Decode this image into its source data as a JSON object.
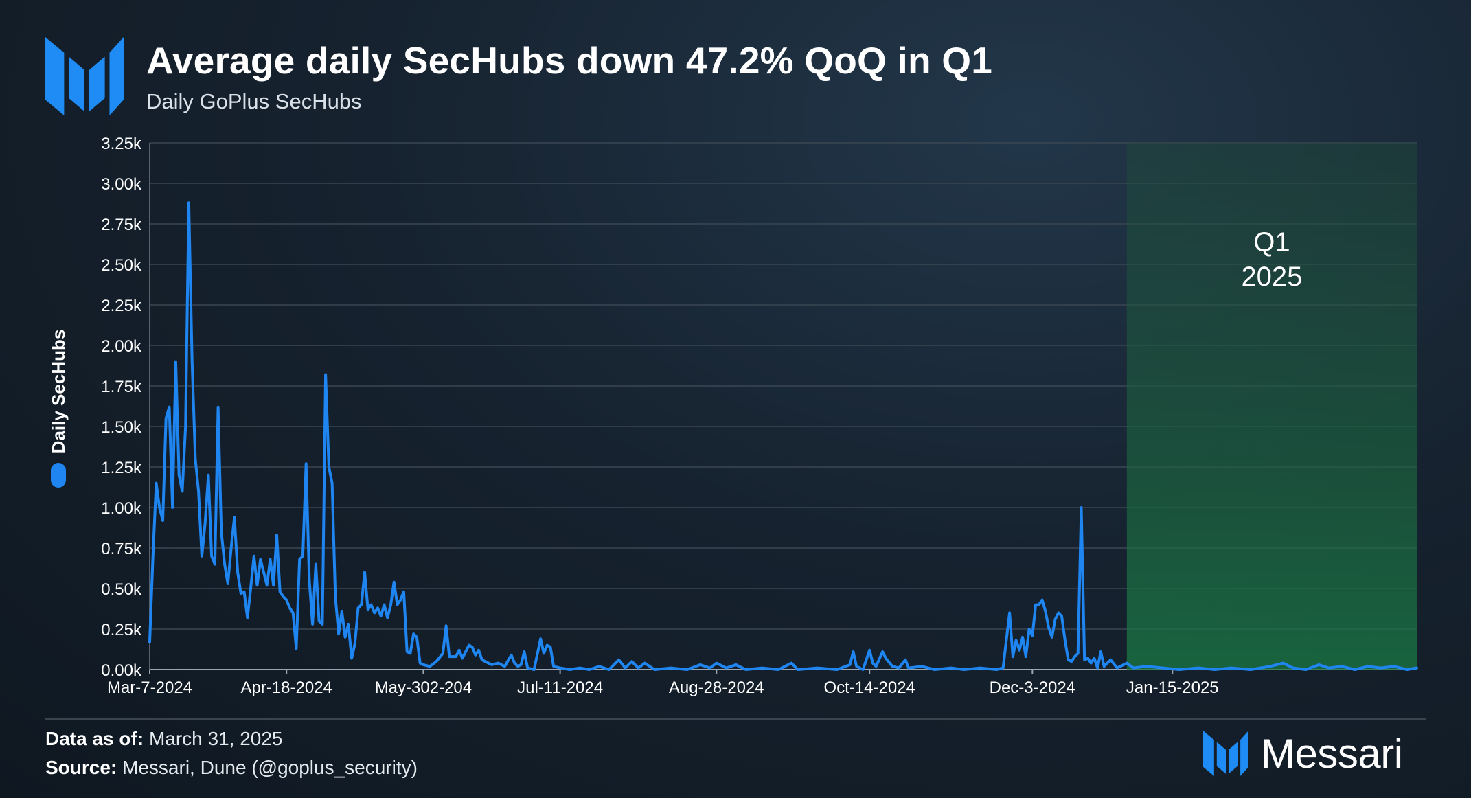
{
  "header": {
    "title": "Average daily SecHubs down 47.2% QoQ in Q1",
    "subtitle": "Daily GoPlus SecHubs"
  },
  "footer": {
    "date_label": "Data as of:",
    "date_value": "March 31, 2025",
    "source_label": "Source:",
    "source_value": "Messari, Dune (@goplus_security)"
  },
  "brand": {
    "name": "Messari",
    "logo_icon": "messari-m-icon"
  },
  "colors": {
    "accent": "#1f85f0",
    "highlight": "#1a7a45",
    "text": "#ffffff"
  },
  "chart_data": {
    "type": "line",
    "ylabel": "Daily SecHubs",
    "ylim": [
      0,
      3250
    ],
    "y_ticks": [
      0,
      250,
      500,
      750,
      1000,
      1250,
      1500,
      1750,
      2000,
      2250,
      2500,
      2750,
      3000,
      3250
    ],
    "y_tick_labels": [
      "0.00k",
      "0.25k",
      "0.50k",
      "0.75k",
      "1.00k",
      "1.25k",
      "1.50k",
      "1.75k",
      "2.00k",
      "2.25k",
      "2.50k",
      "2.75k",
      "3.00k",
      "3.25k"
    ],
    "x_start": "2024-03-07",
    "x_end": "2025-03-31",
    "x_ticks": [
      {
        "date": "2024-03-07",
        "label": "Mar-7-2024"
      },
      {
        "date": "2024-04-18",
        "label": "Apr-18-2024"
      },
      {
        "date": "2024-05-30",
        "label": "May-302-204"
      },
      {
        "date": "2024-07-11",
        "label": "Jul-11-2024"
      },
      {
        "date": "2024-08-28",
        "label": "Aug-28-2024"
      },
      {
        "date": "2024-10-14",
        "label": "Oct-14-2024"
      },
      {
        "date": "2024-12-03",
        "label": "Dec-3-2024"
      },
      {
        "date": "2025-01-15",
        "label": "Jan-15-2025"
      }
    ],
    "grid": true,
    "legend": "left",
    "highlight": {
      "start": "2025-01-01",
      "end": "2025-03-31",
      "label_line1": "Q1",
      "label_line2": "2025"
    },
    "series": [
      {
        "name": "Daily SecHubs",
        "color": "#1f85f0",
        "points": [
          [
            "2024-03-07",
            170
          ],
          [
            "2024-03-08",
            700
          ],
          [
            "2024-03-09",
            1150
          ],
          [
            "2024-03-10",
            1000
          ],
          [
            "2024-03-11",
            920
          ],
          [
            "2024-03-12",
            1550
          ],
          [
            "2024-03-13",
            1620
          ],
          [
            "2024-03-14",
            1000
          ],
          [
            "2024-03-15",
            1900
          ],
          [
            "2024-03-16",
            1200
          ],
          [
            "2024-03-17",
            1100
          ],
          [
            "2024-03-18",
            1500
          ],
          [
            "2024-03-19",
            2880
          ],
          [
            "2024-03-20",
            1900
          ],
          [
            "2024-03-21",
            1300
          ],
          [
            "2024-03-22",
            1100
          ],
          [
            "2024-03-23",
            700
          ],
          [
            "2024-03-24",
            900
          ],
          [
            "2024-03-25",
            1200
          ],
          [
            "2024-03-26",
            700
          ],
          [
            "2024-03-27",
            650
          ],
          [
            "2024-03-28",
            1620
          ],
          [
            "2024-03-29",
            850
          ],
          [
            "2024-03-30",
            650
          ],
          [
            "2024-03-31",
            530
          ],
          [
            "2024-04-01",
            750
          ],
          [
            "2024-04-02",
            940
          ],
          [
            "2024-04-03",
            600
          ],
          [
            "2024-04-04",
            470
          ],
          [
            "2024-04-05",
            480
          ],
          [
            "2024-04-06",
            320
          ],
          [
            "2024-04-07",
            500
          ],
          [
            "2024-04-08",
            700
          ],
          [
            "2024-04-09",
            520
          ],
          [
            "2024-04-10",
            680
          ],
          [
            "2024-04-11",
            600
          ],
          [
            "2024-04-12",
            520
          ],
          [
            "2024-04-13",
            680
          ],
          [
            "2024-04-14",
            520
          ],
          [
            "2024-04-15",
            830
          ],
          [
            "2024-04-16",
            480
          ],
          [
            "2024-04-17",
            450
          ],
          [
            "2024-04-18",
            430
          ],
          [
            "2024-04-19",
            380
          ],
          [
            "2024-04-20",
            350
          ],
          [
            "2024-04-21",
            130
          ],
          [
            "2024-04-22",
            680
          ],
          [
            "2024-04-23",
            700
          ],
          [
            "2024-04-24",
            1270
          ],
          [
            "2024-04-25",
            550
          ],
          [
            "2024-04-26",
            280
          ],
          [
            "2024-04-27",
            650
          ],
          [
            "2024-04-28",
            300
          ],
          [
            "2024-04-29",
            280
          ],
          [
            "2024-04-30",
            1820
          ],
          [
            "2024-05-01",
            1250
          ],
          [
            "2024-05-02",
            1150
          ],
          [
            "2024-05-03",
            450
          ],
          [
            "2024-05-04",
            220
          ],
          [
            "2024-05-05",
            360
          ],
          [
            "2024-05-06",
            200
          ],
          [
            "2024-05-07",
            280
          ],
          [
            "2024-05-08",
            70
          ],
          [
            "2024-05-09",
            160
          ],
          [
            "2024-05-10",
            380
          ],
          [
            "2024-05-11",
            400
          ],
          [
            "2024-05-12",
            600
          ],
          [
            "2024-05-13",
            370
          ],
          [
            "2024-05-14",
            400
          ],
          [
            "2024-05-15",
            350
          ],
          [
            "2024-05-16",
            380
          ],
          [
            "2024-05-17",
            330
          ],
          [
            "2024-05-18",
            400
          ],
          [
            "2024-05-19",
            320
          ],
          [
            "2024-05-20",
            400
          ],
          [
            "2024-05-21",
            540
          ],
          [
            "2024-05-22",
            400
          ],
          [
            "2024-05-23",
            430
          ],
          [
            "2024-05-24",
            480
          ],
          [
            "2024-05-25",
            110
          ],
          [
            "2024-05-26",
            100
          ],
          [
            "2024-05-27",
            220
          ],
          [
            "2024-05-28",
            200
          ],
          [
            "2024-05-29",
            40
          ],
          [
            "2024-05-30",
            30
          ],
          [
            "2024-06-01",
            20
          ],
          [
            "2024-06-03",
            50
          ],
          [
            "2024-06-05",
            100
          ],
          [
            "2024-06-06",
            270
          ],
          [
            "2024-06-07",
            80
          ],
          [
            "2024-06-09",
            80
          ],
          [
            "2024-06-10",
            120
          ],
          [
            "2024-06-11",
            70
          ],
          [
            "2024-06-13",
            150
          ],
          [
            "2024-06-14",
            140
          ],
          [
            "2024-06-15",
            90
          ],
          [
            "2024-06-16",
            120
          ],
          [
            "2024-06-17",
            60
          ],
          [
            "2024-06-18",
            50
          ],
          [
            "2024-06-20",
            30
          ],
          [
            "2024-06-22",
            40
          ],
          [
            "2024-06-24",
            20
          ],
          [
            "2024-06-26",
            90
          ],
          [
            "2024-06-27",
            40
          ],
          [
            "2024-06-28",
            20
          ],
          [
            "2024-06-29",
            30
          ],
          [
            "2024-06-30",
            110
          ],
          [
            "2024-07-01",
            10
          ],
          [
            "2024-07-03",
            0
          ],
          [
            "2024-07-05",
            190
          ],
          [
            "2024-07-06",
            100
          ],
          [
            "2024-07-07",
            150
          ],
          [
            "2024-07-08",
            140
          ],
          [
            "2024-07-09",
            20
          ],
          [
            "2024-07-11",
            10
          ],
          [
            "2024-07-14",
            0
          ],
          [
            "2024-07-17",
            10
          ],
          [
            "2024-07-20",
            0
          ],
          [
            "2024-07-23",
            20
          ],
          [
            "2024-07-26",
            0
          ],
          [
            "2024-07-29",
            60
          ],
          [
            "2024-07-31",
            10
          ],
          [
            "2024-08-02",
            50
          ],
          [
            "2024-08-04",
            10
          ],
          [
            "2024-08-06",
            40
          ],
          [
            "2024-08-09",
            0
          ],
          [
            "2024-08-14",
            10
          ],
          [
            "2024-08-19",
            0
          ],
          [
            "2024-08-23",
            30
          ],
          [
            "2024-08-26",
            10
          ],
          [
            "2024-08-28",
            40
          ],
          [
            "2024-08-31",
            10
          ],
          [
            "2024-09-03",
            30
          ],
          [
            "2024-09-06",
            0
          ],
          [
            "2024-09-11",
            10
          ],
          [
            "2024-09-16",
            0
          ],
          [
            "2024-09-20",
            40
          ],
          [
            "2024-09-22",
            0
          ],
          [
            "2024-09-28",
            10
          ],
          [
            "2024-10-04",
            0
          ],
          [
            "2024-10-08",
            30
          ],
          [
            "2024-10-09",
            110
          ],
          [
            "2024-10-10",
            20
          ],
          [
            "2024-10-12",
            0
          ],
          [
            "2024-10-14",
            120
          ],
          [
            "2024-10-15",
            40
          ],
          [
            "2024-10-16",
            20
          ],
          [
            "2024-10-18",
            110
          ],
          [
            "2024-10-19",
            70
          ],
          [
            "2024-10-21",
            20
          ],
          [
            "2024-10-23",
            10
          ],
          [
            "2024-10-25",
            60
          ],
          [
            "2024-10-26",
            10
          ],
          [
            "2024-10-30",
            20
          ],
          [
            "2024-11-03",
            0
          ],
          [
            "2024-11-08",
            10
          ],
          [
            "2024-11-12",
            0
          ],
          [
            "2024-11-17",
            10
          ],
          [
            "2024-11-22",
            0
          ],
          [
            "2024-11-24",
            10
          ],
          [
            "2024-11-26",
            350
          ],
          [
            "2024-11-27",
            80
          ],
          [
            "2024-11-28",
            180
          ],
          [
            "2024-11-29",
            120
          ],
          [
            "2024-11-30",
            200
          ],
          [
            "2024-12-01",
            80
          ],
          [
            "2024-12-02",
            250
          ],
          [
            "2024-12-03",
            210
          ],
          [
            "2024-12-04",
            400
          ],
          [
            "2024-12-05",
            400
          ],
          [
            "2024-12-06",
            430
          ],
          [
            "2024-12-07",
            360
          ],
          [
            "2024-12-08",
            260
          ],
          [
            "2024-12-09",
            200
          ],
          [
            "2024-12-10",
            310
          ],
          [
            "2024-12-11",
            350
          ],
          [
            "2024-12-12",
            330
          ],
          [
            "2024-12-13",
            180
          ],
          [
            "2024-12-14",
            60
          ],
          [
            "2024-12-15",
            50
          ],
          [
            "2024-12-16",
            80
          ],
          [
            "2024-12-17",
            100
          ],
          [
            "2024-12-18",
            1000
          ],
          [
            "2024-12-19",
            60
          ],
          [
            "2024-12-20",
            70
          ],
          [
            "2024-12-21",
            40
          ],
          [
            "2024-12-22",
            70
          ],
          [
            "2024-12-23",
            10
          ],
          [
            "2024-12-24",
            110
          ],
          [
            "2024-12-25",
            20
          ],
          [
            "2024-12-27",
            60
          ],
          [
            "2024-12-29",
            10
          ],
          [
            "2025-01-01",
            40
          ],
          [
            "2025-01-03",
            10
          ],
          [
            "2025-01-07",
            20
          ],
          [
            "2025-01-12",
            10
          ],
          [
            "2025-01-17",
            0
          ],
          [
            "2025-01-23",
            10
          ],
          [
            "2025-01-28",
            0
          ],
          [
            "2025-02-02",
            10
          ],
          [
            "2025-02-08",
            0
          ],
          [
            "2025-02-14",
            20
          ],
          [
            "2025-02-18",
            40
          ],
          [
            "2025-02-21",
            10
          ],
          [
            "2025-02-25",
            0
          ],
          [
            "2025-03-01",
            30
          ],
          [
            "2025-03-04",
            10
          ],
          [
            "2025-03-08",
            20
          ],
          [
            "2025-03-12",
            0
          ],
          [
            "2025-03-16",
            20
          ],
          [
            "2025-03-20",
            10
          ],
          [
            "2025-03-24",
            20
          ],
          [
            "2025-03-28",
            0
          ],
          [
            "2025-03-31",
            10
          ]
        ]
      }
    ]
  }
}
